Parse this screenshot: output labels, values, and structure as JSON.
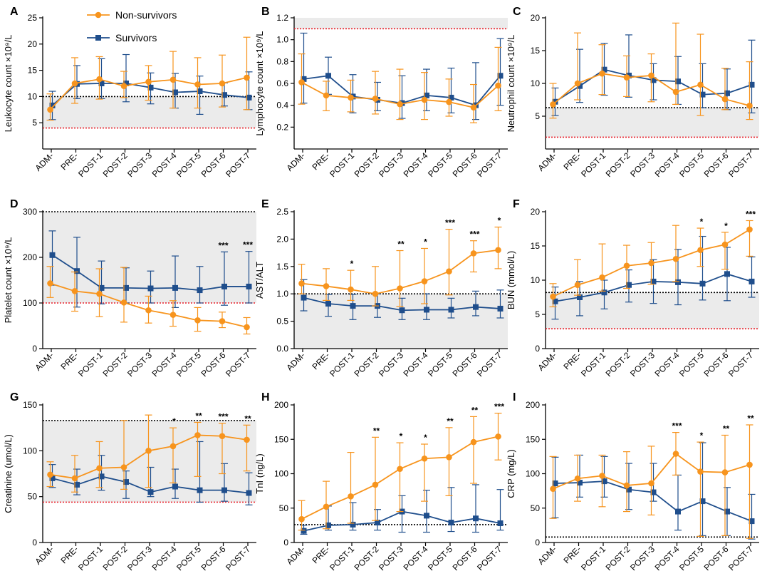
{
  "figure": {
    "legend": {
      "entries": [
        {
          "name": "Non-survivors",
          "color": "#F7941D",
          "marker": "circle"
        },
        {
          "name": "Survivors",
          "color": "#1F4E8C",
          "marker": "square"
        }
      ]
    },
    "colors": {
      "nonsurvivor": "#F7941D",
      "survivor": "#1F4E8C",
      "ref_upper": "#000000",
      "ref_lower": "#E8202A",
      "normal_band": "#EBEBEB"
    }
  },
  "chart_data": [
    {
      "panel": "A",
      "type": "line",
      "ylabel": "Leukocyte count ×10⁹/L",
      "categories": [
        "ADM-",
        "PRE-",
        "POST-1",
        "POST-2",
        "POST-3",
        "POST-4",
        "POST-5",
        "POST-6",
        "POST-7"
      ],
      "ylim": [
        0,
        25
      ],
      "yticks": [
        5,
        10,
        15,
        20,
        25
      ],
      "band": [
        4,
        10
      ],
      "ref_upper": 10,
      "ref_lower": 4,
      "series": [
        {
          "name": "Non-survivors",
          "values": [
            7.5,
            12.5,
            13.3,
            12.0,
            12.8,
            13.2,
            12.3,
            12.5,
            13.6
          ],
          "err_low": [
            5.5,
            8.7,
            9.5,
            9.8,
            9.3,
            7.8,
            7.8,
            8.0,
            7.5
          ],
          "err_high": [
            10.5,
            17.4,
            17.6,
            14.8,
            15.9,
            18.6,
            17.4,
            17.9,
            21.3
          ]
        },
        {
          "name": "Survivors",
          "values": [
            8.3,
            12.4,
            12.5,
            12.5,
            11.7,
            10.8,
            11.0,
            10.3,
            9.8
          ],
          "err_low": [
            5.6,
            9.6,
            9.6,
            9.0,
            8.6,
            7.8,
            6.6,
            8.2,
            7.5
          ],
          "err_high": [
            11.0,
            15.9,
            17.2,
            18.0,
            14.5,
            14.4,
            13.9,
            12.6,
            14.7
          ]
        }
      ],
      "sig": [
        "",
        "",
        "",
        "",
        "",
        "",
        "",
        "",
        ""
      ]
    },
    {
      "panel": "B",
      "type": "line",
      "ylabel": "Lymphocyte count ×10⁹/L",
      "categories": [
        "ADM-",
        "PRE-",
        "POST-1",
        "POST-2",
        "POST-3",
        "POST-4",
        "POST-5",
        "POST-6",
        "POST-7"
      ],
      "ylim": [
        0,
        1.2
      ],
      "yticks": [
        0.2,
        0.4,
        0.6,
        0.8,
        1.0,
        1.2
      ],
      "band": [
        1.1,
        1.2
      ],
      "ref_upper": null,
      "ref_lower": 1.1,
      "series": [
        {
          "name": "Non-survivors",
          "values": [
            0.61,
            0.49,
            0.47,
            0.46,
            0.41,
            0.45,
            0.43,
            0.38,
            0.58
          ],
          "err_low": [
            0.41,
            0.35,
            0.34,
            0.32,
            0.27,
            0.27,
            0.3,
            0.24,
            0.35
          ],
          "err_high": [
            0.87,
            0.62,
            0.63,
            0.71,
            0.73,
            0.7,
            0.64,
            0.59,
            0.93
          ]
        },
        {
          "name": "Survivors",
          "values": [
            0.64,
            0.67,
            0.48,
            0.45,
            0.42,
            0.49,
            0.47,
            0.4,
            0.67
          ],
          "err_low": [
            0.42,
            0.5,
            0.33,
            0.35,
            0.28,
            0.35,
            0.33,
            0.27,
            0.4
          ],
          "err_high": [
            1.06,
            0.84,
            0.68,
            0.61,
            0.67,
            0.73,
            0.74,
            0.79,
            1.01
          ]
        }
      ],
      "sig": [
        "",
        "",
        "",
        "",
        "",
        "",
        "",
        "",
        ""
      ]
    },
    {
      "panel": "C",
      "type": "line",
      "ylabel": "Neutrophil count ×10⁹/L",
      "categories": [
        "ADM-",
        "PRE-",
        "POST-1",
        "POST-2",
        "POST-3",
        "POST-4",
        "POST-5",
        "POST-6",
        "POST-7"
      ],
      "ylim": [
        0,
        20
      ],
      "yticks": [
        5,
        10,
        15,
        20
      ],
      "band": [
        1.8,
        6.3
      ],
      "ref_upper": 6.3,
      "ref_lower": 1.8,
      "series": [
        {
          "name": "Non-survivors",
          "values": [
            6.8,
            10.0,
            11.5,
            10.9,
            11.2,
            8.7,
            9.8,
            7.6,
            6.6
          ],
          "err_low": [
            4.7,
            7.5,
            8.3,
            8.0,
            7.2,
            6.8,
            5.1,
            6.0,
            4.5
          ],
          "err_high": [
            10.0,
            17.7,
            15.9,
            14.2,
            14.5,
            19.2,
            17.5,
            12.3,
            13.3
          ]
        },
        {
          "name": "Survivors",
          "values": [
            7.2,
            9.6,
            12.1,
            11.2,
            10.5,
            10.3,
            8.3,
            8.5,
            9.8
          ],
          "err_low": [
            5.1,
            7.1,
            8.2,
            7.9,
            7.5,
            6.8,
            6.3,
            6.0,
            5.5
          ],
          "err_high": [
            9.3,
            15.2,
            16.1,
            17.4,
            13.0,
            14.1,
            13.0,
            12.2,
            16.6
          ]
        }
      ],
      "sig": [
        "",
        "",
        "",
        "",
        "",
        "",
        "",
        "",
        ""
      ]
    },
    {
      "panel": "D",
      "type": "line",
      "ylabel": "Platelet count ×10⁹/L",
      "categories": [
        "ADM-",
        "PRE-",
        "POST-1",
        "POST-2",
        "POST-3",
        "POST-4",
        "POST-5",
        "POST-6",
        "POST-7"
      ],
      "ylim": [
        0,
        300
      ],
      "yticks": [
        0,
        100,
        200,
        300
      ],
      "band": [
        100,
        300
      ],
      "ref_upper": 300,
      "ref_lower": 100,
      "series": [
        {
          "name": "Non-survivors",
          "values": [
            143,
            126,
            120,
            101,
            84,
            74,
            62,
            60,
            47
          ],
          "err_low": [
            112,
            82,
            70,
            58,
            56,
            49,
            38,
            46,
            32
          ],
          "err_high": [
            180,
            168,
            175,
            178,
            115,
            105,
            90,
            80,
            68
          ]
        },
        {
          "name": "Survivors",
          "values": [
            205,
            170,
            133,
            133,
            132,
            133,
            128,
            136,
            136
          ],
          "err_low": [
            139,
            91,
            98,
            100,
            100,
            90,
            100,
            95,
            100
          ],
          "err_high": [
            258,
            244,
            192,
            177,
            170,
            203,
            180,
            212,
            213
          ]
        }
      ],
      "sig": [
        "",
        "",
        "",
        "",
        "",
        "",
        "",
        "***",
        "***"
      ]
    },
    {
      "panel": "E",
      "type": "line",
      "ylabel": "AST/ALT",
      "categories": [
        "ADM-",
        "PRE-",
        "POST-1",
        "POST-2",
        "POST-3",
        "POST-4",
        "POST-5",
        "POST-6",
        "POST-7"
      ],
      "ylim": [
        0,
        2.5
      ],
      "yticks": [
        0.0,
        0.5,
        1.0,
        1.5,
        2.0,
        2.5
      ],
      "band": [
        0,
        1.0
      ],
      "ref_upper": 1.0,
      "ref_lower": null,
      "series": [
        {
          "name": "Non-survivors",
          "values": [
            1.19,
            1.14,
            1.08,
            1.0,
            1.1,
            1.23,
            1.41,
            1.74,
            1.8
          ],
          "err_low": [
            1.0,
            0.88,
            0.88,
            0.78,
            0.77,
            0.82,
            0.98,
            1.4,
            1.46
          ],
          "err_high": [
            1.54,
            1.46,
            1.43,
            1.5,
            1.79,
            1.83,
            2.18,
            1.97,
            2.22
          ]
        },
        {
          "name": "Survivors",
          "values": [
            0.93,
            0.82,
            0.78,
            0.78,
            0.7,
            0.71,
            0.71,
            0.76,
            0.73
          ],
          "err_low": [
            0.69,
            0.59,
            0.53,
            0.57,
            0.53,
            0.53,
            0.56,
            0.6,
            0.56
          ],
          "err_high": [
            1.26,
            0.99,
            0.99,
            1.0,
            0.92,
            1.0,
            0.92,
            1.05,
            1.07
          ]
        }
      ],
      "sig": [
        "",
        "",
        "*",
        "",
        "**",
        "*",
        "***",
        "***",
        "*"
      ]
    },
    {
      "panel": "F",
      "type": "line",
      "ylabel": "BUN (mmol/L)",
      "categories": [
        "ADM-",
        "PRE-",
        "POST-1",
        "POST-2",
        "POST-3",
        "POST-4",
        "POST-5",
        "POST-6",
        "POST-7"
      ],
      "ylim": [
        0,
        20
      ],
      "yticks": [
        0,
        5,
        10,
        15,
        20
      ],
      "band": [
        2.9,
        8.2
      ],
      "ref_upper": 8.2,
      "ref_lower": 2.9,
      "series": [
        {
          "name": "Non-survivors",
          "values": [
            7.6,
            9.3,
            10.4,
            12.1,
            12.5,
            13.1,
            14.4,
            15.2,
            17.4
          ],
          "err_low": [
            6.1,
            7.8,
            8.4,
            8.8,
            9.4,
            9.8,
            12.0,
            11.6,
            13.5
          ],
          "err_high": [
            9.5,
            13.0,
            15.3,
            15.1,
            15.5,
            18.0,
            17.6,
            17.0,
            18.7
          ]
        },
        {
          "name": "Survivors",
          "values": [
            6.9,
            7.5,
            8.2,
            9.3,
            9.8,
            9.7,
            9.5,
            10.9,
            9.8
          ],
          "err_low": [
            4.3,
            4.8,
            5.8,
            6.8,
            6.6,
            6.4,
            7.1,
            7.0,
            7.5
          ],
          "err_high": [
            9.0,
            9.8,
            10.0,
            11.5,
            13.0,
            14.5,
            16.4,
            14.8,
            13.4
          ]
        }
      ],
      "sig": [
        "",
        "",
        "",
        "",
        "",
        "",
        "*",
        "*",
        "***"
      ]
    },
    {
      "panel": "G",
      "type": "line",
      "ylabel": "Creatinine (umol/L)",
      "categories": [
        "ADM-",
        "PRE-",
        "POST-1",
        "POST-2",
        "POST-3",
        "POST-4",
        "POST-5",
        "POST-6",
        "POST-7"
      ],
      "ylim": [
        0,
        150
      ],
      "yticks": [
        0,
        50,
        100,
        150
      ],
      "band": [
        44,
        133
      ],
      "ref_upper": 133,
      "ref_lower": 44,
      "series": [
        {
          "name": "Non-survivors",
          "values": [
            74,
            70,
            81,
            82,
            100,
            105,
            117,
            116,
            112
          ],
          "err_low": [
            61,
            55,
            60,
            58,
            60,
            65,
            72,
            75,
            78
          ],
          "err_high": [
            88,
            95,
            110,
            133,
            139,
            125,
            131,
            130,
            128
          ]
        },
        {
          "name": "Survivors",
          "values": [
            70,
            63,
            72,
            66,
            55,
            61,
            57,
            57,
            54
          ],
          "err_low": [
            60,
            52,
            57,
            48,
            50,
            48,
            44,
            45,
            41
          ],
          "err_high": [
            85,
            80,
            95,
            78,
            82,
            80,
            110,
            86,
            76
          ]
        }
      ],
      "sig": [
        "",
        "",
        "",
        "",
        "",
        "*",
        "**",
        "***",
        "**"
      ]
    },
    {
      "panel": "H",
      "type": "line",
      "ylabel": "TnI (ng/L)",
      "categories": [
        "ADM-",
        "PRE-",
        "POST-1",
        "POST-2",
        "POST-3",
        "POST-4",
        "POST-5",
        "POST-6",
        "POST-7"
      ],
      "ylim": [
        0,
        200
      ],
      "yticks": [
        0,
        50,
        100,
        150,
        200
      ],
      "band": null,
      "ref_upper": 26,
      "ref_lower": null,
      "series": [
        {
          "name": "Non-survivors",
          "values": [
            34,
            52,
            67,
            84,
            107,
            122,
            124,
            146,
            154
          ],
          "err_low": [
            18,
            20,
            28,
            32,
            45,
            60,
            68,
            86,
            120
          ],
          "err_high": [
            61,
            89,
            131,
            153,
            145,
            143,
            167,
            183,
            188
          ]
        },
        {
          "name": "Survivors",
          "values": [
            17,
            25,
            26,
            29,
            45,
            39,
            29,
            35,
            28
          ],
          "err_low": [
            12,
            18,
            18,
            18,
            15,
            15,
            16,
            15,
            18
          ],
          "err_high": [
            25,
            53,
            58,
            48,
            68,
            76,
            80,
            84,
            77
          ]
        }
      ],
      "sig": [
        "",
        "",
        "",
        "**",
        "*",
        "*",
        "**",
        "**",
        "***"
      ]
    },
    {
      "panel": "I",
      "type": "line",
      "ylabel": "CRP (mg/L)",
      "categories": [
        "ADM-",
        "PRE-",
        "POST-1",
        "POST-2",
        "POST-3",
        "POST-4",
        "POST-5",
        "POST-6",
        "POST-7"
      ],
      "ylim": [
        0,
        200
      ],
      "yticks": [
        0,
        50,
        100,
        150,
        200
      ],
      "band": null,
      "ref_upper": 8,
      "ref_lower": null,
      "series": [
        {
          "name": "Non-survivors",
          "values": [
            78,
            93,
            97,
            83,
            86,
            129,
            103,
            102,
            113
          ],
          "err_low": [
            35,
            60,
            52,
            45,
            40,
            98,
            9,
            10,
            6
          ],
          "err_high": [
            125,
            127,
            127,
            132,
            140,
            160,
            146,
            156,
            171
          ]
        },
        {
          "name": "Survivors",
          "values": [
            86,
            87,
            89,
            77,
            73,
            45,
            60,
            45,
            31
          ],
          "err_low": [
            36,
            66,
            66,
            48,
            60,
            18,
            10,
            10,
            5
          ],
          "err_high": [
            124,
            127,
            125,
            115,
            115,
            98,
            145,
            80,
            70
          ]
        }
      ],
      "sig": [
        "",
        "",
        "",
        "",
        "",
        "***",
        "*",
        "**",
        "**"
      ]
    }
  ]
}
